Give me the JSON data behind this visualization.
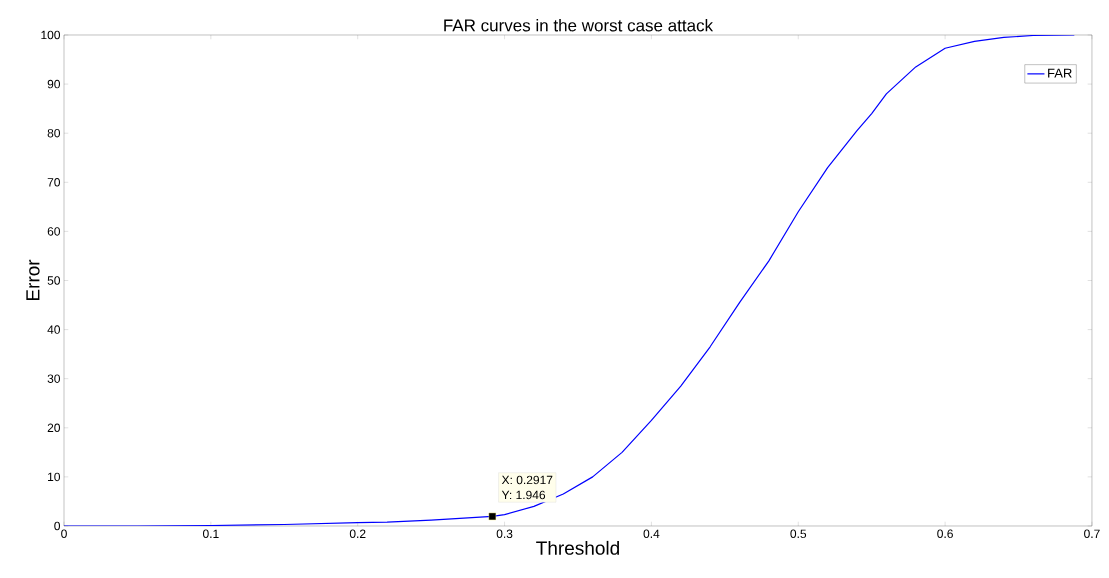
{
  "chart_data": {
    "type": "line",
    "title": "FAR curves in the worst case attack",
    "xlabel": "Threshold",
    "ylabel": "Error",
    "series": [
      {
        "name": "FAR",
        "color": "#0000ff",
        "x": [
          0,
          0.05,
          0.1,
          0.15,
          0.2,
          0.22,
          0.25,
          0.2917,
          0.3,
          0.32,
          0.34,
          0.36,
          0.38,
          0.4,
          0.42,
          0.44,
          0.46,
          0.48,
          0.5,
          0.52,
          0.54,
          0.55,
          0.56,
          0.58,
          0.6,
          0.62,
          0.64,
          0.66,
          0.688
        ],
        "values": [
          0,
          0,
          0.1,
          0.3,
          0.7,
          0.8,
          1.2,
          1.946,
          2.3,
          4,
          6.5,
          10,
          15,
          21.5,
          28.5,
          36.5,
          45.5,
          54,
          64,
          73,
          80.5,
          84,
          88,
          93.5,
          97.3,
          98.7,
          99.5,
          99.9,
          100
        ]
      }
    ],
    "annotations": [
      {
        "text": "X: 0.2917",
        "x": 0.2917,
        "y": 1.946
      },
      "Y: 1.946"
    ],
    "xlim": [
      0,
      0.7
    ],
    "ylim": [
      0,
      100
    ],
    "xticks": [
      0,
      0.1,
      0.2,
      0.3,
      0.4,
      0.5,
      0.6,
      0.7
    ],
    "yticks": [
      0,
      10,
      20,
      30,
      40,
      50,
      60,
      70,
      80,
      90,
      100
    ],
    "grid": false,
    "legend": "top right",
    "marker": "none",
    "line_style": "solid"
  }
}
